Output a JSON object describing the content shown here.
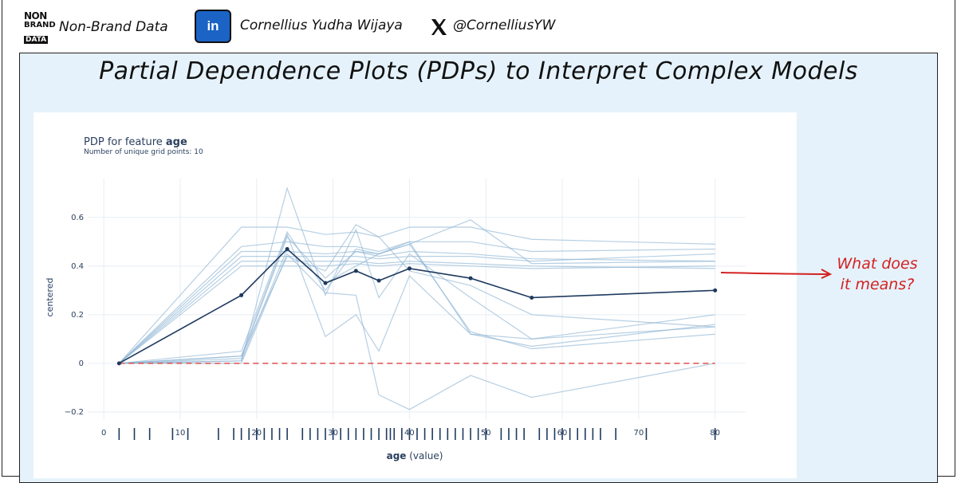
{
  "header": {
    "logo_line1": "NON",
    "logo_line2": "BRAND",
    "logo_line3": "DATA",
    "brand_name": "Non-Brand Data",
    "linkedin_label": "in",
    "author_name": "Cornellius Yudha Wijaya",
    "x_icon": "x-logo-icon",
    "x_handle": "@CornelliusYW"
  },
  "main_title": "Partial Dependence Plots (PDPs) to Interpret Complex Models",
  "annotation": {
    "line1": "What does",
    "line2": "it means?",
    "color": "#d32222"
  },
  "colors": {
    "panel_bg": "#e5f2fb",
    "linkedin_blue": "#1b63c4",
    "pdp_line": "#1f3a5f",
    "ice_line": "#8fb5d4",
    "baseline": "#e0504d"
  },
  "chart_data": {
    "type": "line",
    "title_prefix": "PDP for feature ",
    "title_feature": "age",
    "subtitle": "Number of unique grid points: 10",
    "xlabel_bold": "age",
    "xlabel_rest": " (value)",
    "ylabel": "centered",
    "xlim": [
      -2,
      84
    ],
    "ylim": [
      -0.23,
      0.76
    ],
    "x_ticks": [
      0,
      10,
      20,
      30,
      40,
      50,
      60,
      70,
      80
    ],
    "x_tick_labels": [
      "0",
      "10",
      "20",
      "30",
      "40",
      "50",
      "60",
      "70",
      "80"
    ],
    "y_ticks": [
      -0.2,
      0,
      0.2,
      0.4,
      0.6
    ],
    "y_tick_labels": [
      "−0.2",
      "0",
      "0.2",
      "0.4",
      "0.6"
    ],
    "grid": true,
    "pdp": {
      "x": [
        2,
        18,
        24,
        29,
        33,
        36,
        40,
        48,
        56,
        80
      ],
      "y": [
        0,
        0.28,
        0.47,
        0.33,
        0.38,
        0.34,
        0.39,
        0.35,
        0.27,
        0.3
      ]
    },
    "ice_lines": [
      [
        0,
        0.56,
        0.56,
        0.53,
        0.54,
        0.52,
        0.56,
        0.56,
        0.51,
        0.49
      ],
      [
        0,
        0.48,
        0.5,
        0.48,
        0.48,
        0.46,
        0.5,
        0.5,
        0.46,
        0.47
      ],
      [
        0,
        0.46,
        0.46,
        0.45,
        0.46,
        0.44,
        0.46,
        0.45,
        0.43,
        0.42
      ],
      [
        0,
        0.44,
        0.44,
        0.44,
        0.44,
        0.43,
        0.44,
        0.44,
        0.42,
        0.45
      ],
      [
        0,
        0.42,
        0.42,
        0.42,
        0.42,
        0.41,
        0.42,
        0.41,
        0.4,
        0.39
      ],
      [
        0,
        0.4,
        0.4,
        0.4,
        0.41,
        0.4,
        0.41,
        0.4,
        0.39,
        0.4
      ],
      [
        0,
        0.05,
        0.54,
        0.3,
        0.47,
        0.45,
        0.5,
        0.12,
        0.1,
        0.15
      ],
      [
        0,
        0.03,
        0.53,
        0.11,
        0.2,
        0.05,
        0.36,
        0.12,
        0.07,
        0.16
      ],
      [
        0,
        0.02,
        0.52,
        0.35,
        0.46,
        0.45,
        0.49,
        0.13,
        0.06,
        0.12
      ],
      [
        0,
        0.01,
        0.72,
        0.28,
        0.55,
        0.27,
        0.45,
        0.27,
        0.1,
        0.2
      ],
      [
        0,
        0.01,
        0.47,
        0.33,
        0.4,
        0.45,
        0.49,
        0.59,
        0.41,
        0.42
      ],
      [
        0,
        0.0,
        0.45,
        0.29,
        0.28,
        -0.13,
        -0.19,
        -0.05,
        -0.14,
        0.0
      ],
      [
        0,
        0.03,
        0.44,
        0.38,
        0.57,
        0.52,
        0.38,
        0.32,
        0.2,
        0.15
      ]
    ],
    "baseline_y": 0,
    "rug_x": [
      2,
      4,
      6,
      9,
      11,
      15,
      17,
      18,
      19,
      20,
      21,
      22,
      23,
      24,
      26,
      27,
      28,
      29,
      30,
      31,
      32,
      33,
      34,
      35,
      36,
      37,
      37.5,
      38,
      39,
      40,
      41,
      42,
      43,
      44,
      45,
      46,
      47,
      48,
      49,
      50,
      52,
      53,
      54,
      55,
      57,
      58,
      59,
      60,
      61,
      62,
      63,
      64,
      65,
      67,
      71,
      80
    ]
  }
}
